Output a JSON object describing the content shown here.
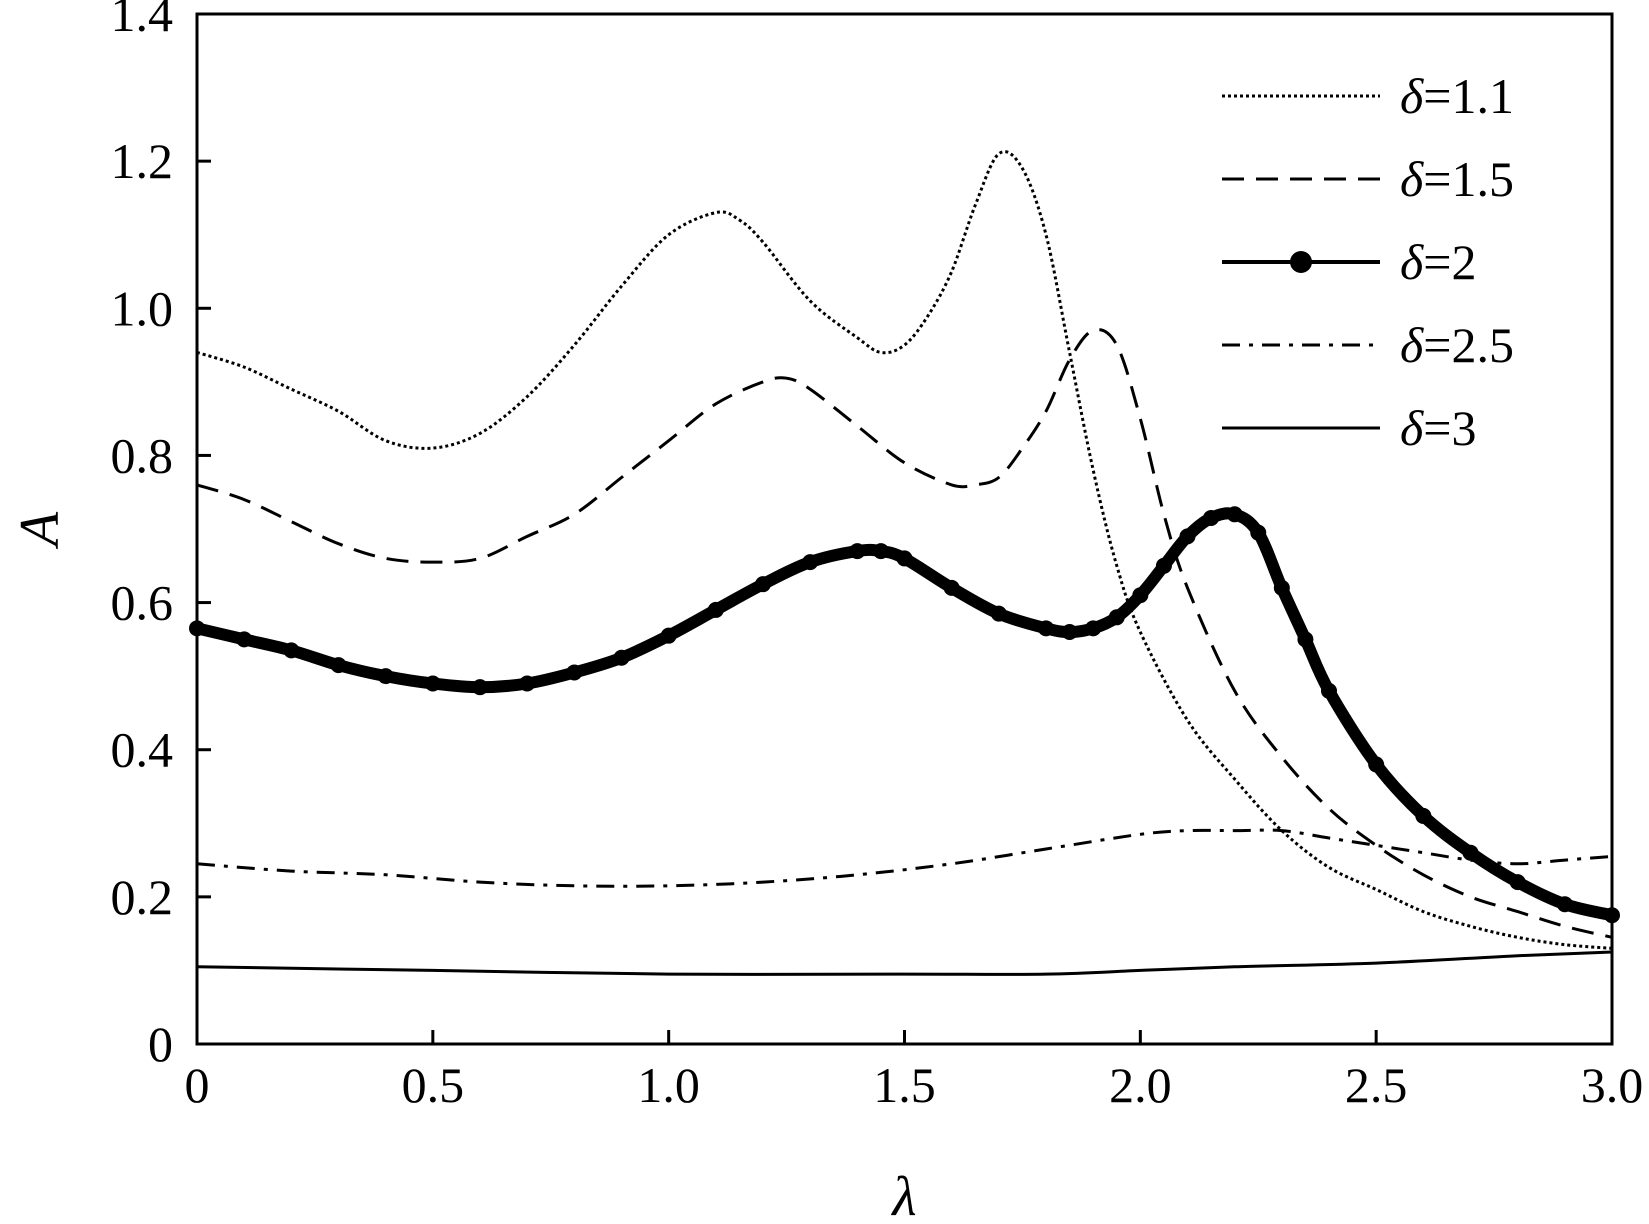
{
  "chart_data": {
    "type": "line",
    "title": "",
    "xlabel": "λ",
    "ylabel": "A",
    "xlim": [
      0,
      3.0
    ],
    "ylim": [
      0,
      1.4
    ],
    "xticks": [
      0,
      0.5,
      1.0,
      1.5,
      2.0,
      2.5,
      3.0
    ],
    "xtick_labels": [
      "0",
      "0.5",
      "1.0",
      "1.5",
      "2.0",
      "2.5",
      "3.0"
    ],
    "yticks": [
      0,
      0.2,
      0.4,
      0.6,
      0.8,
      1.0,
      1.2,
      1.4
    ],
    "ytick_labels": [
      "0",
      "0.2",
      "0.4",
      "0.6",
      "0.8",
      "1.0",
      "1.2",
      "1.4"
    ],
    "grid": false,
    "legend_position": "top-right",
    "series": [
      {
        "name": "δ=1.1",
        "style": "dotted",
        "x": [
          0,
          0.1,
          0.2,
          0.3,
          0.4,
          0.5,
          0.6,
          0.7,
          0.8,
          0.9,
          1.0,
          1.1,
          1.15,
          1.2,
          1.3,
          1.4,
          1.45,
          1.5,
          1.55,
          1.6,
          1.65,
          1.7,
          1.75,
          1.8,
          1.85,
          1.9,
          1.95,
          2.0,
          2.1,
          2.2,
          2.3,
          2.4,
          2.5,
          2.6,
          2.7,
          2.8,
          2.9,
          3.0
        ],
        "y": [
          0.94,
          0.92,
          0.89,
          0.86,
          0.82,
          0.81,
          0.83,
          0.88,
          0.95,
          1.03,
          1.1,
          1.13,
          1.12,
          1.09,
          1.01,
          0.96,
          0.94,
          0.95,
          0.99,
          1.05,
          1.14,
          1.21,
          1.19,
          1.1,
          0.94,
          0.78,
          0.65,
          0.56,
          0.44,
          0.36,
          0.29,
          0.24,
          0.21,
          0.18,
          0.16,
          0.145,
          0.135,
          0.13
        ]
      },
      {
        "name": "δ=1.5",
        "style": "dashed",
        "x": [
          0,
          0.1,
          0.2,
          0.3,
          0.4,
          0.5,
          0.6,
          0.7,
          0.8,
          0.9,
          1.0,
          1.1,
          1.2,
          1.25,
          1.3,
          1.4,
          1.5,
          1.6,
          1.65,
          1.7,
          1.75,
          1.8,
          1.85,
          1.9,
          1.95,
          2.0,
          2.05,
          2.1,
          2.2,
          2.3,
          2.4,
          2.5,
          2.6,
          2.7,
          2.8,
          2.9,
          3.0
        ],
        "y": [
          0.76,
          0.74,
          0.71,
          0.68,
          0.66,
          0.655,
          0.66,
          0.69,
          0.72,
          0.77,
          0.82,
          0.87,
          0.9,
          0.905,
          0.89,
          0.84,
          0.79,
          0.76,
          0.76,
          0.77,
          0.81,
          0.86,
          0.93,
          0.97,
          0.95,
          0.85,
          0.72,
          0.62,
          0.48,
          0.39,
          0.32,
          0.27,
          0.23,
          0.2,
          0.18,
          0.16,
          0.145
        ]
      },
      {
        "name": "δ=2",
        "style": "solid-marker",
        "x": [
          0,
          0.1,
          0.2,
          0.3,
          0.4,
          0.5,
          0.6,
          0.7,
          0.8,
          0.9,
          1.0,
          1.1,
          1.2,
          1.3,
          1.4,
          1.45,
          1.5,
          1.6,
          1.7,
          1.8,
          1.85,
          1.9,
          1.95,
          2.0,
          2.05,
          2.1,
          2.15,
          2.2,
          2.25,
          2.3,
          2.35,
          2.4,
          2.5,
          2.6,
          2.7,
          2.8,
          2.9,
          3.0
        ],
        "y": [
          0.565,
          0.55,
          0.535,
          0.515,
          0.5,
          0.49,
          0.485,
          0.49,
          0.505,
          0.525,
          0.555,
          0.59,
          0.625,
          0.655,
          0.67,
          0.67,
          0.66,
          0.62,
          0.585,
          0.565,
          0.56,
          0.565,
          0.58,
          0.61,
          0.65,
          0.69,
          0.715,
          0.72,
          0.695,
          0.62,
          0.55,
          0.48,
          0.38,
          0.31,
          0.26,
          0.22,
          0.19,
          0.175
        ]
      },
      {
        "name": "δ=2.5",
        "style": "dashdot",
        "x": [
          0,
          0.2,
          0.4,
          0.6,
          0.8,
          1.0,
          1.2,
          1.4,
          1.6,
          1.8,
          2.0,
          2.1,
          2.2,
          2.3,
          2.4,
          2.5,
          2.6,
          2.7,
          2.8,
          2.9,
          3.0
        ],
        "y": [
          0.245,
          0.235,
          0.23,
          0.22,
          0.215,
          0.215,
          0.22,
          0.23,
          0.245,
          0.265,
          0.285,
          0.29,
          0.29,
          0.29,
          0.28,
          0.27,
          0.26,
          0.25,
          0.245,
          0.25,
          0.255
        ]
      },
      {
        "name": "δ=3",
        "style": "solid",
        "x": [
          0,
          0.5,
          1.0,
          1.5,
          1.8,
          2.0,
          2.2,
          2.5,
          2.8,
          3.0
        ],
        "y": [
          0.105,
          0.1,
          0.095,
          0.095,
          0.095,
          0.1,
          0.105,
          0.11,
          0.12,
          0.125
        ]
      }
    ]
  }
}
